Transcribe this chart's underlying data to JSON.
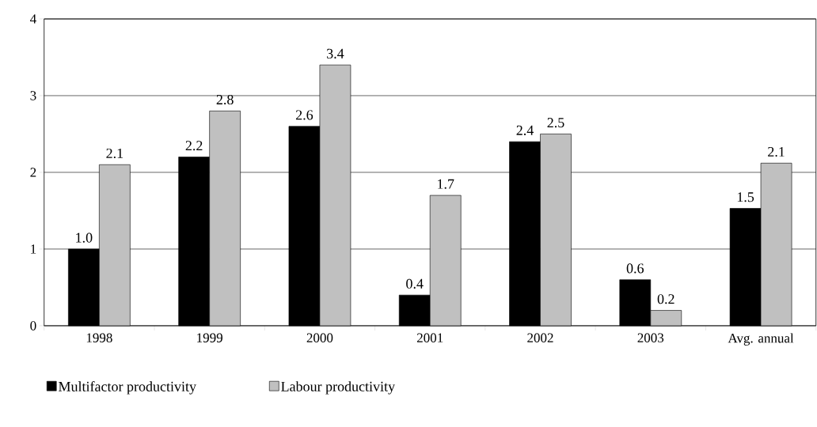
{
  "chart_data": {
    "type": "bar",
    "categories": [
      "1998",
      "1999",
      "2000",
      "2001",
      "2002",
      "2003",
      "Avg. annual"
    ],
    "series": [
      {
        "name": "Multifactor productivity",
        "color": "#000000",
        "values": [
          1.0,
          2.2,
          2.6,
          0.4,
          2.4,
          0.6,
          1.53
        ],
        "value_labels": [
          "1.0",
          "2.2",
          "2.6",
          "0.4",
          "2.4",
          "0.6",
          "1.5"
        ]
      },
      {
        "name": "Labour productivity",
        "color": "#c0c0c0",
        "values": [
          2.1,
          2.8,
          3.4,
          1.7,
          2.5,
          0.2,
          2.12
        ],
        "value_labels": [
          "2.1",
          "2.8",
          "3.4",
          "1.7",
          "2.5",
          "0.2",
          "2.1"
        ]
      }
    ],
    "ylim": [
      0,
      4
    ],
    "yticks": [
      0,
      1,
      2,
      3,
      4
    ],
    "grid": "y",
    "legend": "bottom left"
  }
}
